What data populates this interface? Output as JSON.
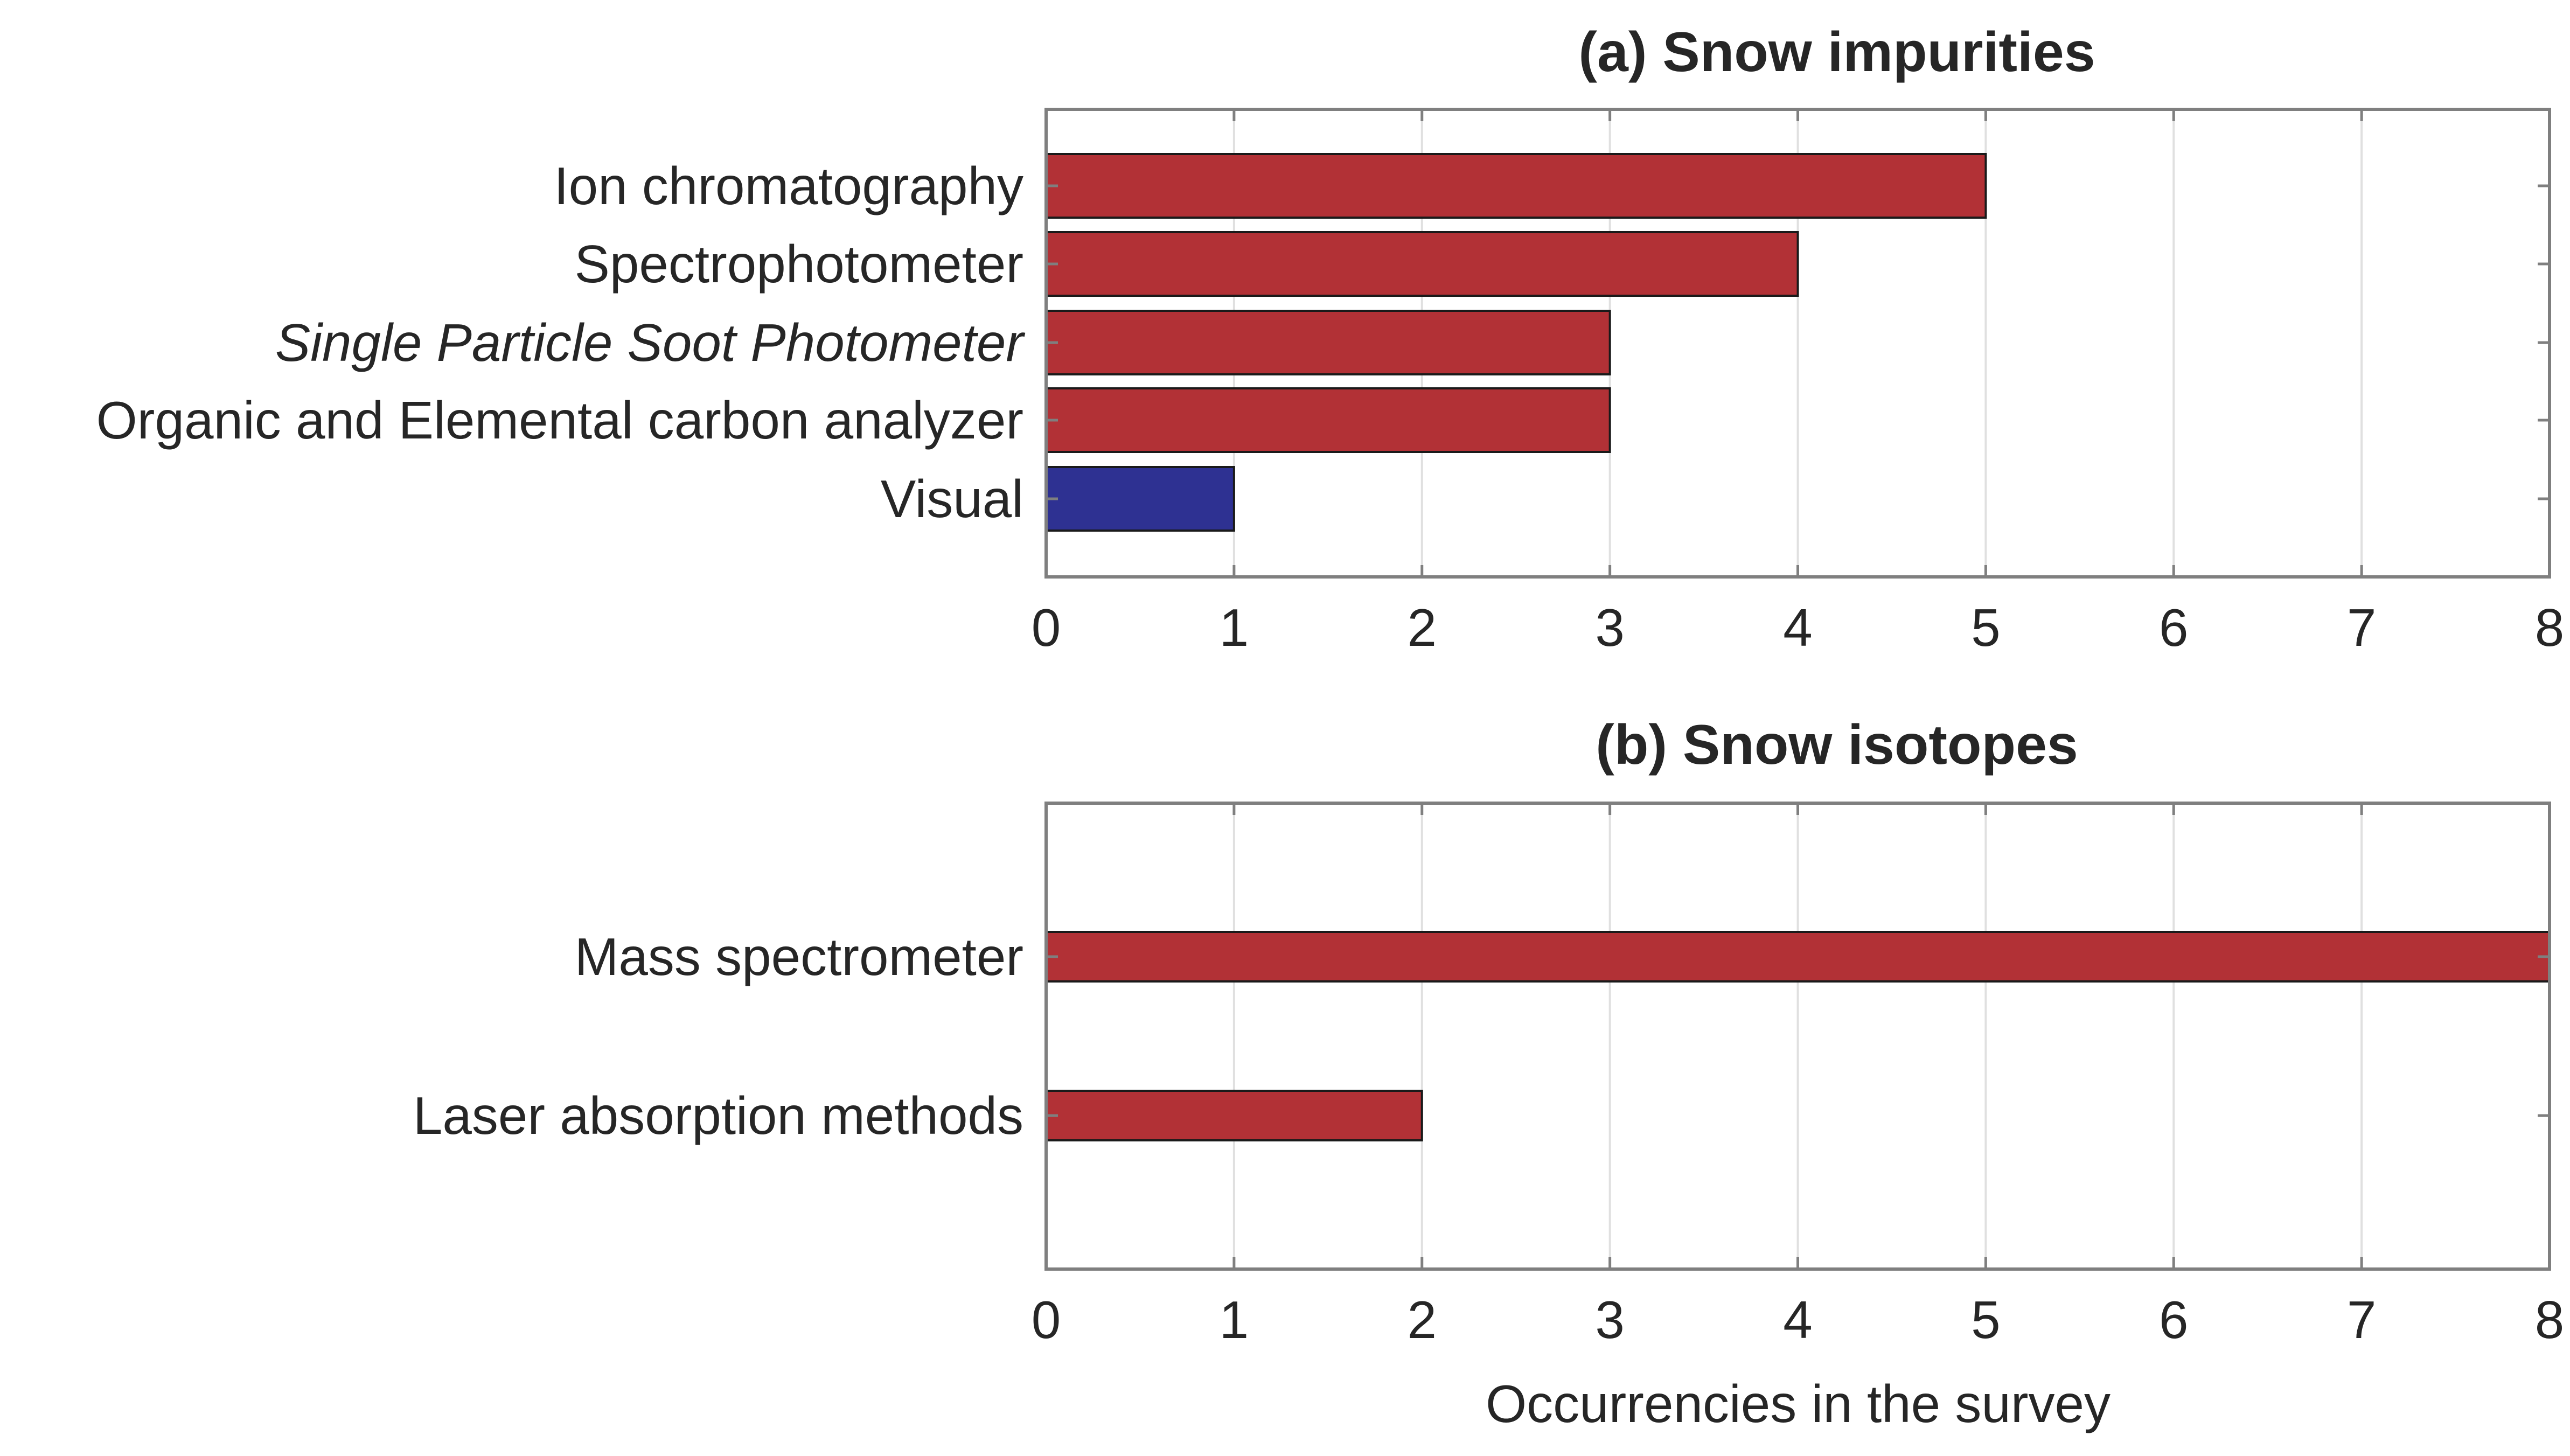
{
  "colors": {
    "bar_red": "#b23136",
    "bar_blue": "#2e3192",
    "axis": "#7f7f7f",
    "grid": "#e0e0e0",
    "text": "#262626"
  },
  "chart_data": [
    {
      "type": "bar",
      "orientation": "horizontal",
      "title": "(a) Snow impurities",
      "xlabel": "",
      "ylabel": "",
      "xlim": [
        0,
        8
      ],
      "xticks": [
        "0",
        "1",
        "2",
        "3",
        "4",
        "5",
        "6",
        "7",
        "8"
      ],
      "grid": true,
      "categories": [
        "Ion chromatography",
        "Spectrophotometer",
        "Single Particle Soot Photometer",
        "Organic and Elemental carbon analyzer",
        "Visual"
      ],
      "italic_categories": [
        "Single Particle Soot Photometer"
      ],
      "values": [
        5,
        4,
        3,
        3,
        1
      ],
      "bar_colors": [
        "#b23136",
        "#b23136",
        "#b23136",
        "#b23136",
        "#2e3192"
      ]
    },
    {
      "type": "bar",
      "orientation": "horizontal",
      "title": "(b) Snow isotopes",
      "xlabel": "Occurrencies in the survey",
      "ylabel": "",
      "xlim": [
        0,
        8
      ],
      "xticks": [
        "0",
        "1",
        "2",
        "3",
        "4",
        "5",
        "6",
        "7",
        "8"
      ],
      "grid": true,
      "categories": [
        "Mass spectrometer",
        "Laser absorption methods"
      ],
      "italic_categories": [],
      "values": [
        8,
        2
      ],
      "bar_colors": [
        "#b23136",
        "#b23136"
      ]
    }
  ]
}
